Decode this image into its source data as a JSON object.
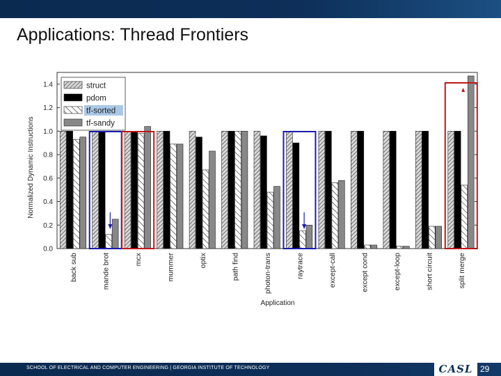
{
  "slide": {
    "title": "Applications: Thread Frontiers",
    "footer": "SCHOOL OF ELECTRICAL AND COMPUTER ENGINEERING | GEORGIA INSTITUTE OF TECHNOLOGY",
    "logo_text": "CASL",
    "page_number": "29"
  },
  "colors": {
    "header_bar": "#0d2f59",
    "highlight_blue": "#1a1ab0",
    "highlight_red": "#c01818",
    "pdom": "#000000",
    "tf_sandy": "#888888",
    "legend_highlight": "#a9c8e6"
  },
  "chart_data": {
    "type": "bar",
    "xlabel": "Application",
    "ylabel": "Normalized Dynamic Instructions",
    "ylim": [
      0,
      1.5
    ],
    "yticks": [
      "0.0",
      "0.2",
      "0.4",
      "0.6",
      "0.8",
      "1.0",
      "1.2",
      "1.4"
    ],
    "legend_position": "top-left",
    "categories": [
      "back sub",
      "mande brot",
      "mcx",
      "mummer",
      "optix",
      "path find",
      "photon-trans",
      "raytrace",
      "except-call",
      "except cond",
      "except-loop",
      "short circuit",
      "split merge"
    ],
    "series": [
      {
        "name": "struct",
        "pattern": "hatch-dense",
        "values": [
          1.0,
          1.0,
          1.0,
          1.0,
          1.0,
          1.0,
          1.0,
          1.0,
          1.0,
          1.0,
          1.0,
          1.0,
          1.0
        ]
      },
      {
        "name": "pdom",
        "pattern": "solid-black",
        "values": [
          1.0,
          1.0,
          1.0,
          1.0,
          0.95,
          1.0,
          0.96,
          0.9,
          1.0,
          1.0,
          1.0,
          1.0,
          1.0
        ]
      },
      {
        "name": "tf-sorted",
        "pattern": "hatch-sparse",
        "values": [
          0.93,
          0.12,
          0.98,
          0.89,
          0.67,
          1.0,
          0.48,
          0.15,
          0.56,
          0.03,
          0.02,
          0.19,
          0.54
        ]
      },
      {
        "name": "tf-sandy",
        "pattern": "solid-gray",
        "values": [
          0.95,
          0.25,
          1.04,
          0.89,
          0.83,
          1.0,
          0.53,
          0.2,
          0.58,
          0.03,
          0.02,
          0.19,
          1.47
        ]
      }
    ],
    "legend_highlighted_entry": "tf-sorted",
    "highlight_boxes": [
      {
        "category": "mande brot",
        "color": "blue",
        "arrow": "down"
      },
      {
        "category": "mcx",
        "color": "red",
        "arrow": "none"
      },
      {
        "category": "raytrace",
        "color": "blue",
        "arrow": "down"
      },
      {
        "category": "split merge",
        "color": "red",
        "arrow": "up"
      }
    ]
  }
}
